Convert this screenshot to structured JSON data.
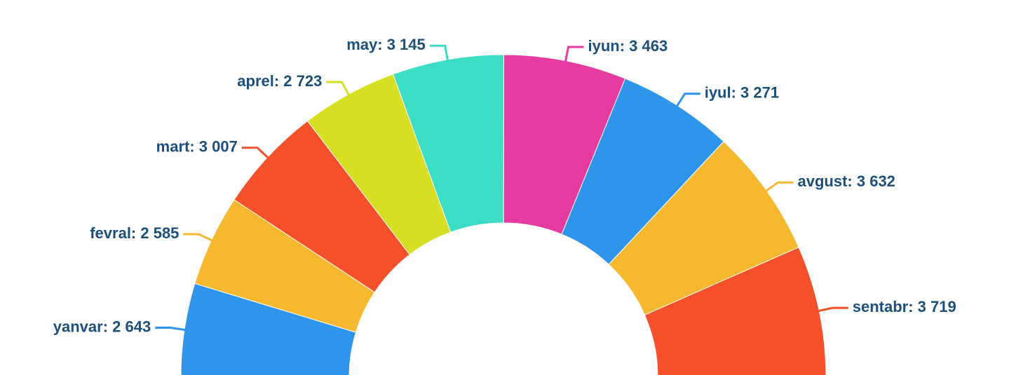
{
  "chart_data": {
    "type": "pie",
    "half": true,
    "values": [
      2643,
      2585,
      3007,
      2723,
      3145,
      3463,
      3271,
      3632,
      3719
    ],
    "value_labels": [
      "yanvar: 2 643",
      "fevral: 2 585",
      "mart: 3 007",
      "aprel: 2 723",
      "may: 3 145",
      "iyun: 3 463",
      "iyul: 3 271",
      "avgust: 3 632",
      "sentabr: 3 719"
    ],
    "colors": [
      "#2f95ea",
      "#f5b82e",
      "#f5502a",
      "#d6df22",
      "#3ddcc5",
      "#e53ba0",
      "#2f95ea",
      "#f5b82e",
      "#f5502a"
    ]
  }
}
